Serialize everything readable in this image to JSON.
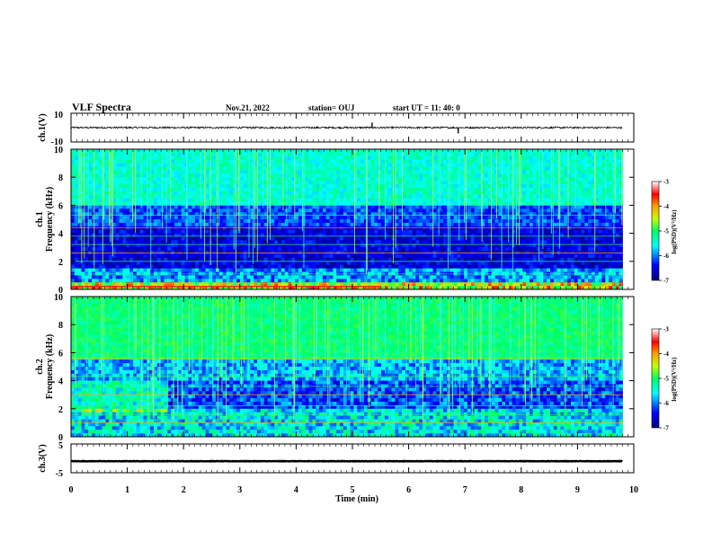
{
  "header": {
    "title": "VLF Spectra",
    "date": "Nov.21, 2022",
    "station": "station= OUJ",
    "start": "start  UT =   11: 40: 0"
  },
  "chart_data": [
    {
      "type": "line",
      "name": "ch1-waveform",
      "ylabel": "ch.1(V)",
      "ylim": [
        -10,
        10
      ],
      "yticks": [
        "10",
        "-10"
      ],
      "xlim": [
        0,
        10
      ],
      "data_extent_min": 9.8,
      "baseline": 0,
      "spikes": [
        {
          "x": 5.35,
          "y": 3.5
        },
        {
          "x": 6.88,
          "y": -4
        }
      ]
    },
    {
      "type": "heatmap",
      "name": "ch1-spectrogram",
      "ylabel": "ch.1\nFrequency (kHz)",
      "ylim": [
        0,
        10
      ],
      "yticks": [
        "0",
        "2",
        "4",
        "6",
        "8",
        "10"
      ],
      "xlim": [
        0,
        10
      ],
      "data_extent_min": 9.8,
      "colorbar": {
        "label": "log(PSD)(V²/Hz)",
        "ticks": [
          "-3",
          "-4",
          "-5",
          "-6",
          "-7"
        ],
        "range": [
          -7,
          -3
        ]
      }
    },
    {
      "type": "heatmap",
      "name": "ch2-spectrogram",
      "ylabel": "ch.2\nFrequency (kHz)",
      "ylim": [
        0,
        10
      ],
      "yticks": [
        "0",
        "2",
        "4",
        "6",
        "8",
        "10"
      ],
      "xlim": [
        0,
        10
      ],
      "data_extent_min": 9.8,
      "colorbar": {
        "label": "log(PSD)(V²/Hz)",
        "ticks": [
          "-3",
          "-4",
          "-5",
          "-6",
          "-7"
        ],
        "range": [
          -7,
          -3
        ]
      }
    },
    {
      "type": "line",
      "name": "ch3-waveform",
      "ylabel": "ch.3(V)",
      "ylim": [
        -5,
        5
      ],
      "yticks": [
        "5",
        "-5"
      ],
      "xlim": [
        0,
        10
      ],
      "data_extent_min": 9.8,
      "baseline": -1,
      "xlabel": "Time  (min)",
      "xticks": [
        "0",
        "1",
        "2",
        "3",
        "4",
        "5",
        "6",
        "7",
        "8",
        "9",
        "10"
      ]
    }
  ]
}
